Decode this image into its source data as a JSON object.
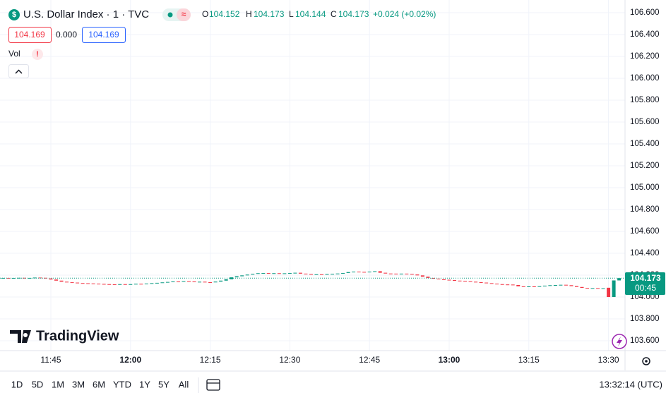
{
  "header": {
    "symbol": "U.S. Dollar Index · 1 · TVC",
    "ohlc": [
      {
        "label": "O",
        "value": "104.152"
      },
      {
        "label": "H",
        "value": "104.173"
      },
      {
        "label": "L",
        "value": "104.144"
      },
      {
        "label": "C",
        "value": "104.173"
      }
    ],
    "change": "+0.024 (+0.02%)"
  },
  "quote": {
    "bid": "104.169",
    "spread": "0.000",
    "ask": "104.169"
  },
  "indicator": "Vol",
  "price_label": {
    "price": "104.173",
    "countdown": "00:45"
  },
  "logo": "TradingView",
  "ranges": [
    "1D",
    "5D",
    "1M",
    "3M",
    "6M",
    "YTD",
    "1Y",
    "5Y",
    "All"
  ],
  "clock": "13:32:14 (UTC)",
  "chart_data": {
    "type": "candlestick",
    "categories": [
      null,
      null,
      null,
      null,
      null,
      null,
      null,
      null,
      null,
      "11:45",
      null,
      null,
      null,
      null,
      null,
      null,
      null,
      null,
      null,
      null,
      null,
      null,
      null,
      null,
      "12:00",
      null,
      null,
      null,
      null,
      null,
      null,
      null,
      null,
      null,
      null,
      null,
      null,
      null,
      null,
      "12:15",
      null,
      null,
      null,
      null,
      null,
      null,
      null,
      null,
      null,
      null,
      null,
      null,
      null,
      null,
      "12:30",
      null,
      null,
      null,
      null,
      null,
      null,
      null,
      null,
      null,
      null,
      null,
      null,
      null,
      null,
      "12:45",
      null,
      null,
      null,
      null,
      null,
      null,
      null,
      null,
      null,
      null,
      null,
      null,
      null,
      null,
      "13:00",
      null,
      null,
      null,
      null,
      null,
      null,
      null,
      null,
      null,
      null,
      null,
      null,
      null,
      null,
      "13:15",
      null,
      null,
      null,
      null,
      null,
      null,
      null,
      null,
      null,
      null,
      null,
      null,
      null,
      null,
      "13:30",
      null,
      null
    ],
    "open": [
      104.174,
      104.175,
      104.172,
      104.174,
      104.176,
      104.173,
      104.175,
      104.178,
      104.176,
      104.17,
      104.16,
      104.15,
      104.14,
      104.135,
      104.132,
      104.128,
      104.126,
      104.124,
      104.122,
      104.12,
      104.118,
      104.117,
      104.115,
      104.118,
      104.116,
      104.118,
      104.121,
      104.119,
      104.123,
      104.127,
      104.13,
      104.134,
      104.138,
      104.142,
      104.14,
      104.145,
      104.142,
      104.138,
      104.14,
      104.136,
      104.134,
      104.141,
      104.15,
      104.162,
      104.18,
      104.19,
      104.198,
      104.205,
      104.212,
      104.218,
      104.22,
      104.216,
      104.218,
      104.215,
      104.217,
      104.22,
      104.222,
      104.214,
      104.21,
      104.206,
      104.208,
      104.207,
      104.21,
      104.212,
      104.215,
      104.22,
      104.228,
      104.232,
      104.23,
      104.228,
      104.232,
      104.236,
      104.222,
      104.215,
      104.214,
      104.212,
      104.214,
      104.211,
      104.206,
      104.198,
      104.186,
      104.175,
      104.168,
      104.162,
      104.158,
      104.155,
      104.15,
      104.148,
      104.144,
      104.14,
      104.136,
      104.132,
      104.127,
      104.122,
      104.118,
      104.115,
      104.114,
      104.11,
      104.098,
      104.094,
      104.097,
      104.095,
      104.099,
      104.104,
      104.108,
      104.11,
      104.112,
      104.108,
      104.1,
      104.092,
      104.084,
      104.08,
      104.082,
      104.078,
      104.085,
      104.0,
      104.152
    ],
    "close": [
      104.175,
      104.172,
      104.174,
      104.176,
      104.173,
      104.175,
      104.178,
      104.176,
      104.17,
      104.16,
      104.15,
      104.14,
      104.135,
      104.132,
      104.128,
      104.126,
      104.124,
      104.122,
      104.12,
      104.118,
      104.117,
      104.115,
      104.118,
      104.116,
      104.118,
      104.121,
      104.119,
      104.123,
      104.127,
      104.13,
      104.134,
      104.138,
      104.142,
      104.14,
      104.145,
      104.142,
      104.138,
      104.14,
      104.136,
      104.134,
      104.141,
      104.15,
      104.162,
      104.18,
      104.19,
      104.198,
      104.205,
      104.212,
      104.218,
      104.22,
      104.216,
      104.218,
      104.215,
      104.217,
      104.22,
      104.222,
      104.214,
      104.21,
      104.206,
      104.208,
      104.207,
      104.21,
      104.212,
      104.215,
      104.22,
      104.228,
      104.232,
      104.23,
      104.228,
      104.232,
      104.236,
      104.222,
      104.215,
      104.214,
      104.212,
      104.214,
      104.211,
      104.206,
      104.198,
      104.186,
      104.175,
      104.168,
      104.162,
      104.158,
      104.155,
      104.15,
      104.148,
      104.144,
      104.14,
      104.136,
      104.132,
      104.127,
      104.122,
      104.118,
      104.115,
      104.114,
      104.11,
      104.098,
      104.094,
      104.097,
      104.095,
      104.099,
      104.104,
      104.108,
      104.11,
      104.112,
      104.108,
      104.1,
      104.092,
      104.084,
      104.08,
      104.082,
      104.078,
      104.08,
      104.0,
      104.152,
      104.173
    ],
    "up_color": "#089981",
    "down_color": "#f23645",
    "ylim": [
      103.51,
      106.716
    ],
    "yticks": [
      {
        "value": 103.6,
        "label": "103.600"
      },
      {
        "value": 103.8,
        "label": "103.800"
      },
      {
        "value": 104.0,
        "label": "104.000"
      },
      {
        "value": 104.2,
        "label": "104.200"
      },
      {
        "value": 104.4,
        "label": "104.400"
      },
      {
        "value": 104.6,
        "label": "104.600"
      },
      {
        "value": 104.8,
        "label": "104.800"
      },
      {
        "value": 105.0,
        "label": "105.000"
      },
      {
        "value": 105.2,
        "label": "105.200"
      },
      {
        "value": 105.4,
        "label": "105.400"
      },
      {
        "value": 105.6,
        "label": "105.600"
      },
      {
        "value": 105.8,
        "label": "105.800"
      },
      {
        "value": 106.0,
        "label": "106.000"
      },
      {
        "value": 106.2,
        "label": "106.200"
      },
      {
        "value": 106.4,
        "label": "106.400"
      },
      {
        "value": 106.6,
        "label": "106.600"
      }
    ],
    "grid": true
  }
}
